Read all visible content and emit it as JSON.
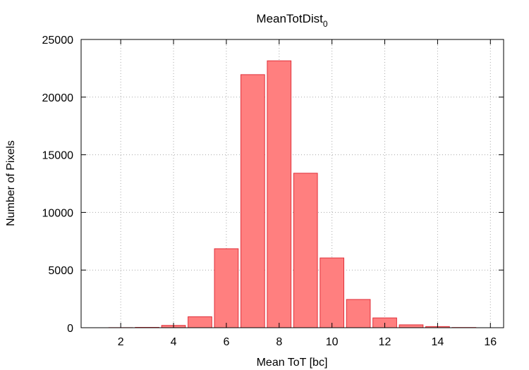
{
  "chart_data": {
    "type": "bar",
    "title": "MeanTotDist",
    "title_subscript": "0",
    "xlabel": "Mean ToT [bc]",
    "ylabel": "Number of Pixels",
    "xlim": [
      0.5,
      16.5
    ],
    "ylim": [
      0,
      25000
    ],
    "xticks": [
      2,
      4,
      6,
      8,
      10,
      12,
      14,
      16
    ],
    "yticks": [
      0,
      5000,
      10000,
      15000,
      20000,
      25000
    ],
    "grid": true,
    "bar_width": 0.9,
    "x": [
      1,
      2,
      3,
      4,
      5,
      6,
      7,
      8,
      9,
      10,
      11,
      12,
      13,
      14,
      15,
      16
    ],
    "values": [
      0,
      10,
      30,
      200,
      950,
      6850,
      21950,
      23150,
      13400,
      6050,
      2450,
      850,
      250,
      100,
      20,
      0
    ],
    "colors": {
      "bar_fill": "#ff7f7f",
      "bar_stroke": "#e0303a"
    }
  }
}
